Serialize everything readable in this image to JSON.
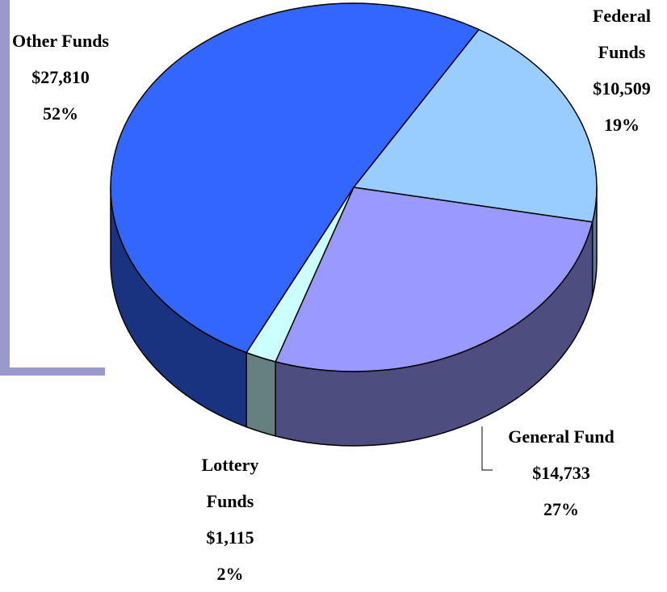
{
  "chart_data": {
    "type": "pie3d",
    "categories": [
      "Other Funds",
      "Federal Funds",
      "General Fund",
      "Lottery Funds"
    ],
    "values": [
      27810,
      10509,
      14733,
      1115
    ],
    "value_labels": [
      "$27,810",
      "$10,509",
      "$14,733",
      "$1,115"
    ],
    "percent_labels": [
      "52%",
      "19%",
      "27%",
      "2%"
    ],
    "colors": [
      "#3366ff",
      "#99ccff",
      "#9999ff",
      "#ccffff"
    ],
    "side_colors": [
      "#1a3380",
      "#5a7a99",
      "#4d4d80",
      "#668080"
    ]
  }
}
